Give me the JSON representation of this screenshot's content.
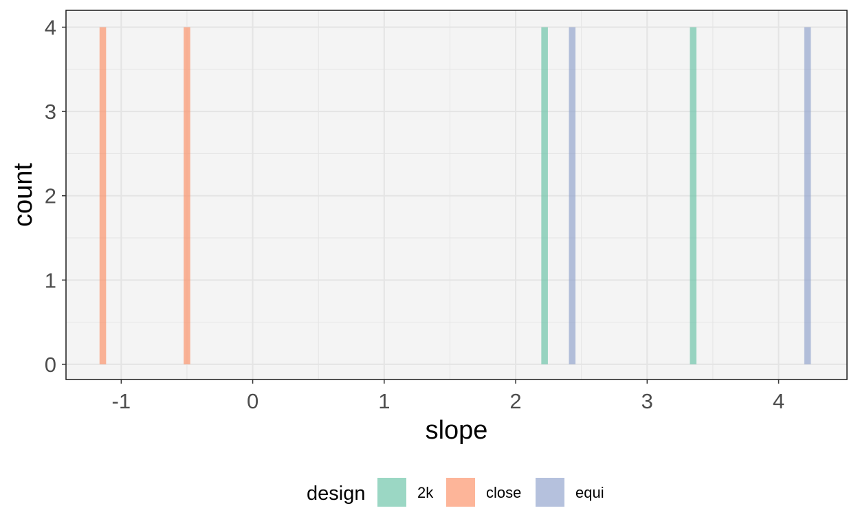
{
  "chart_data": {
    "type": "bar",
    "subtype": "histogram",
    "title": "",
    "xlabel": "slope",
    "ylabel": "count",
    "xlim": [
      -1.42,
      4.52
    ],
    "ylim": [
      -0.18,
      4.2
    ],
    "x_ticks": [
      -1,
      0,
      1,
      2,
      3,
      4
    ],
    "y_ticks": [
      0,
      1,
      2,
      3,
      4
    ],
    "grid": true,
    "bin_width": 0.05,
    "legend": {
      "title": "design",
      "position": "bottom",
      "entries": [
        "2k",
        "close",
        "equi"
      ]
    },
    "series": [
      {
        "name": "close",
        "color": "#FC8D62",
        "x": [
          -1.14,
          -0.5
        ],
        "values": [
          4,
          4
        ]
      },
      {
        "name": "2k",
        "color": "#66C2A5",
        "x": [
          2.22,
          3.35
        ],
        "values": [
          4,
          4
        ]
      },
      {
        "name": "equi",
        "color": "#8DA0CB",
        "x": [
          2.43,
          4.22
        ],
        "values": [
          4,
          4
        ]
      }
    ],
    "bar_opacity": 0.65,
    "panel_background": "#F4F4F4",
    "grid_color": "#E4E4E4"
  }
}
